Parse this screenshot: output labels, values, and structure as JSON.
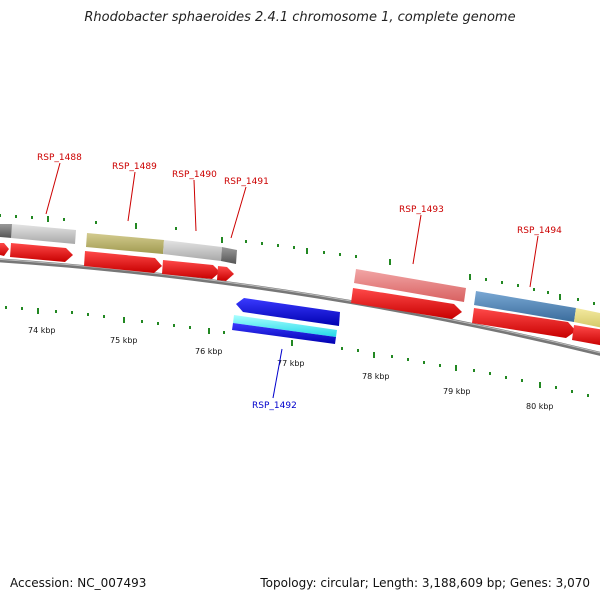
{
  "title": "Rhodobacter sphaeroides 2.4.1 chromosome 1, complete genome",
  "footer": {
    "accession": "Accession: NC_007493",
    "summary": "Topology: circular; Length: 3,188,609 bp; Genes: 3,070"
  },
  "colors": {
    "upper_label": "#cc0000",
    "lower_label": "#0000cc",
    "cds_arrow": "#ee0000",
    "tick": "#228822",
    "backbone": "#888888"
  },
  "genes": [
    {
      "id": "RSP_1488",
      "strand": "forward"
    },
    {
      "id": "RSP_1489",
      "strand": "forward"
    },
    {
      "id": "RSP_1490",
      "strand": "forward"
    },
    {
      "id": "RSP_1491",
      "strand": "forward"
    },
    {
      "id": "RSP_1492",
      "strand": "reverse"
    },
    {
      "id": "RSP_1493",
      "strand": "forward"
    },
    {
      "id": "RSP_1494",
      "strand": "forward"
    }
  ],
  "kbp_labels": [
    "74 kbp",
    "75 kbp",
    "76 kbp",
    "77 kbp",
    "78 kbp",
    "79 kbp",
    "80 kbp"
  ]
}
